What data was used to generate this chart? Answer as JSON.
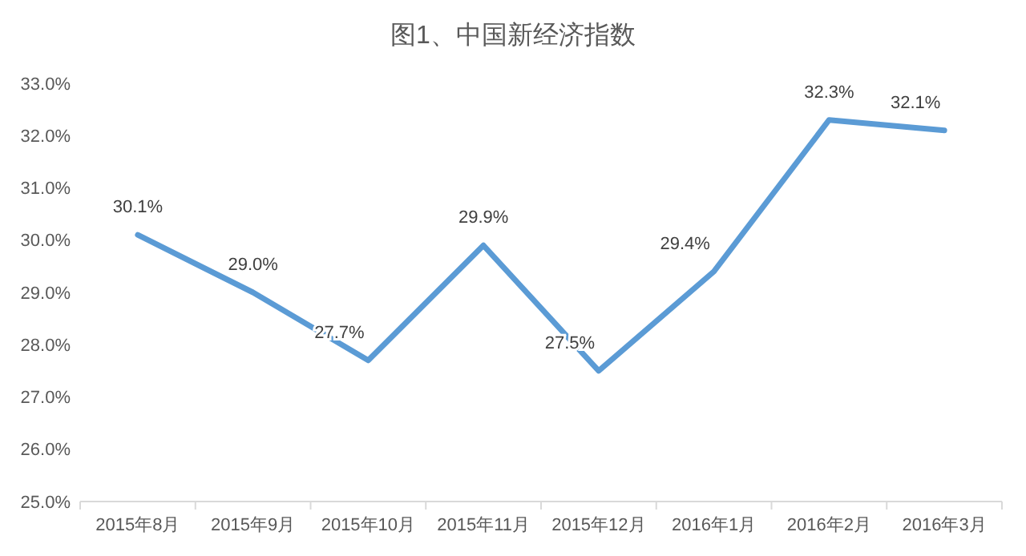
{
  "chart_data": {
    "type": "line",
    "title": "图1、中国新经济指数",
    "categories": [
      "2015年8月",
      "2015年9月",
      "2015年10月",
      "2015年11月",
      "2015年12月",
      "2016年1月",
      "2016年2月",
      "2016年3月"
    ],
    "series": [
      {
        "color": "#5b9bd5",
        "values": [
          30.1,
          29.0,
          27.7,
          29.9,
          27.5,
          29.4,
          32.3,
          32.1
        ],
        "value_labels": [
          "30.1%",
          "29.0%",
          "27.7%",
          "29.9%",
          "27.5%",
          "29.4%",
          "32.3%",
          "32.1%"
        ]
      }
    ],
    "ylim": [
      25,
      33
    ],
    "yticks": [
      {
        "value": 25,
        "label": "25.0%"
      },
      {
        "value": 26,
        "label": "26.0%"
      },
      {
        "value": 27,
        "label": "27.0%"
      },
      {
        "value": 28,
        "label": "28.0%"
      },
      {
        "value": 29,
        "label": "29.0%"
      },
      {
        "value": 30,
        "label": "30.0%"
      },
      {
        "value": 31,
        "label": "31.0%"
      },
      {
        "value": 32,
        "label": "32.0%"
      },
      {
        "value": 33,
        "label": "33.0%"
      }
    ],
    "grid": false,
    "marker": "none",
    "line_style": "solid"
  }
}
